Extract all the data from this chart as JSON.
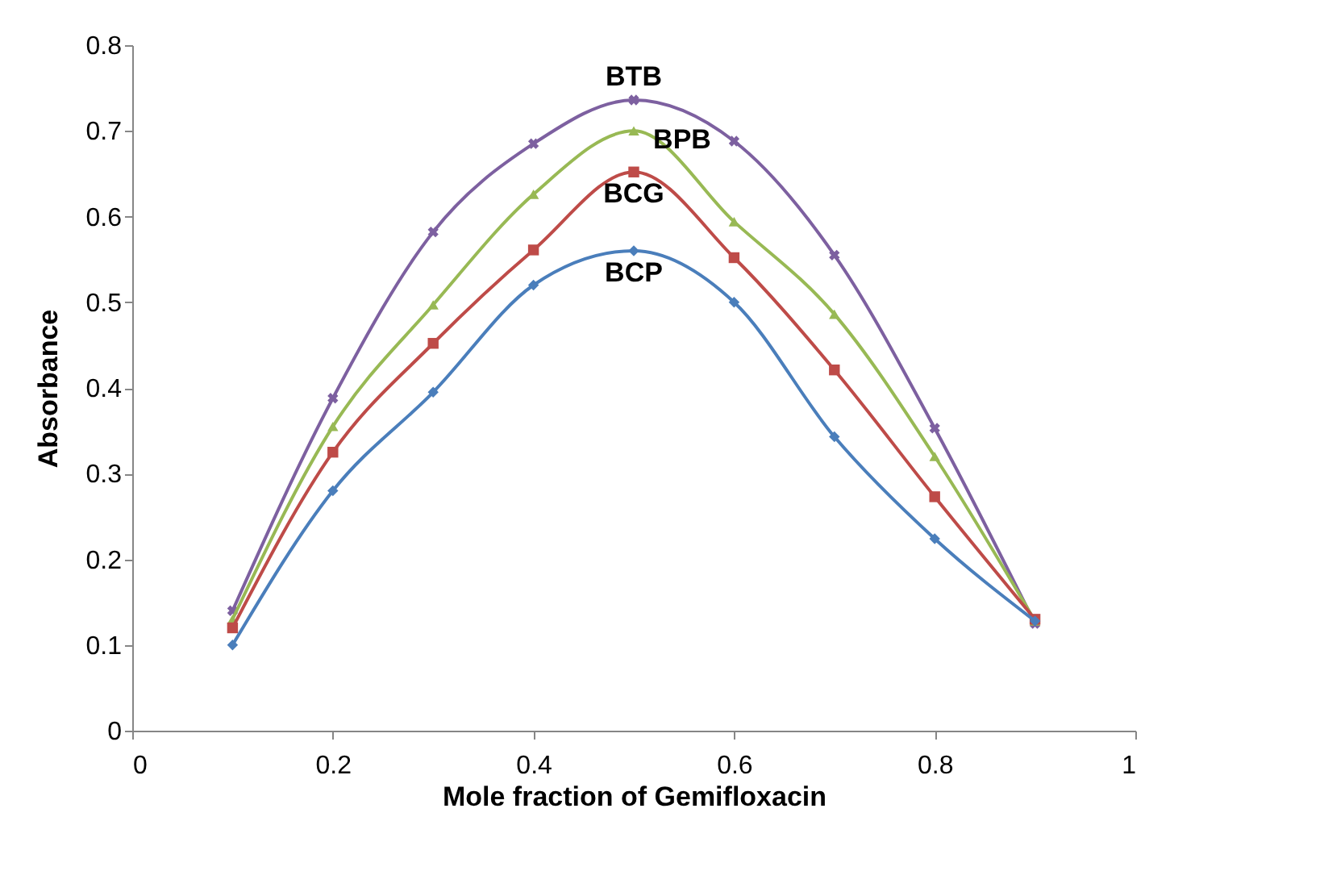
{
  "chart_data": {
    "type": "line",
    "xlabel": "Mole fraction of Gemifloxacin",
    "ylabel": "Absorbance",
    "x": [
      0.1,
      0.2,
      0.3,
      0.4,
      0.5,
      0.6,
      0.7,
      0.8,
      0.9
    ],
    "xlim": [
      0,
      1
    ],
    "xticks": [
      0,
      0.2,
      0.4,
      0.6,
      0.8,
      1
    ],
    "ylim": [
      0,
      0.8
    ],
    "yticks": [
      0,
      0.1,
      0.2,
      0.3,
      0.4,
      0.5,
      0.6,
      0.7,
      0.8
    ],
    "grid": false,
    "legend": false,
    "series": [
      {
        "name": "BTB",
        "color": "#7d60a0",
        "marker": "cross",
        "values": [
          0.14,
          0.388,
          0.582,
          0.685,
          0.736,
          0.688,
          0.555,
          0.353,
          0.125
        ]
      },
      {
        "name": "BPB",
        "color": "#98b954",
        "marker": "triangle",
        "values": [
          0.13,
          0.355,
          0.497,
          0.626,
          0.7,
          0.594,
          0.486,
          0.32,
          0.128
        ]
      },
      {
        "name": "BCG",
        "color": "#be4b48",
        "marker": "square",
        "values": [
          0.12,
          0.325,
          0.452,
          0.561,
          0.652,
          0.552,
          0.421,
          0.273,
          0.13
        ]
      },
      {
        "name": "BCP",
        "color": "#4a7ebb",
        "marker": "diamond",
        "values": [
          0.1,
          0.28,
          0.395,
          0.52,
          0.56,
          0.5,
          0.343,
          0.224,
          0.128
        ]
      }
    ]
  }
}
